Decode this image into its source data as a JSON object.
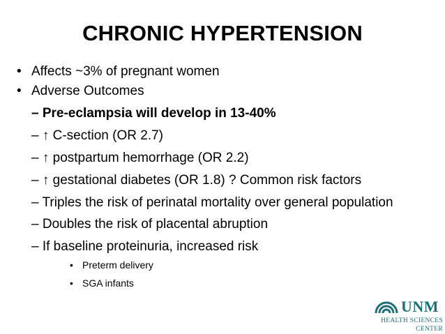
{
  "title": "CHRONIC HYPERTENSION",
  "bullets": [
    "Affects ~3% of pregnant women",
    "Adverse Outcomes"
  ],
  "bullet_marker": "•",
  "sub_items": [
    "– Pre-eclampsia will develop in 13-40%",
    "– ↑ C-section (OR 2.7)",
    "– ↑ postpartum hemorrhage (OR 2.2)",
    "– ↑ gestational diabetes (OR 1.8) ? Common risk factors",
    "– Triples the risk of perinatal mortality over general population",
    "– Doubles the risk of placental abruption",
    "– If baseline proteinuria, increased risk"
  ],
  "sub_sub_items": [
    "Preterm delivery",
    "SGA infants"
  ],
  "logo": {
    "name": "UNM",
    "line1": "HEALTH SCIENCES",
    "line2": "CENTER",
    "color": "#1d6f79"
  }
}
